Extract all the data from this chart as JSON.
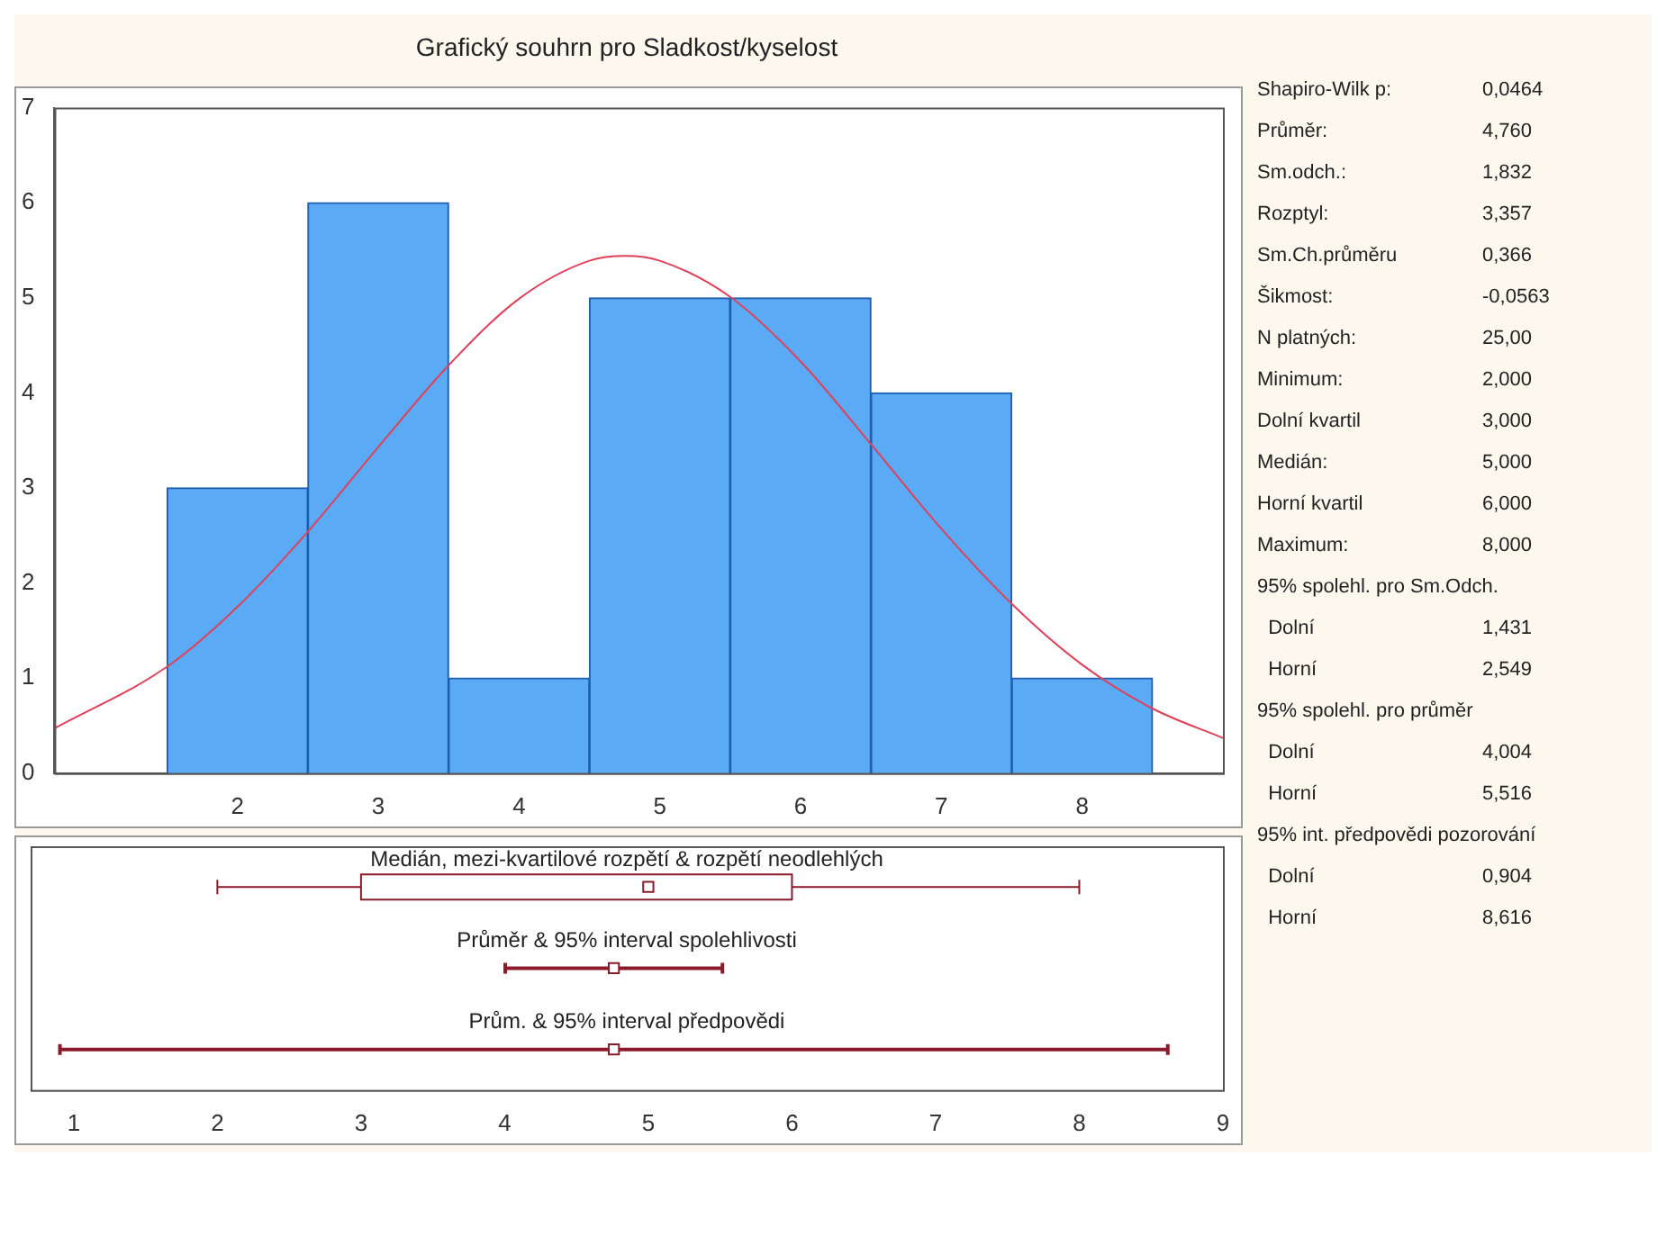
{
  "chart_data": [
    {
      "type": "histogram",
      "title": "Grafický souhrn pro Sladkost/kyselost",
      "bins": [
        1.5,
        2.5,
        3.5,
        4.5,
        5.5,
        6.5,
        7.5,
        8.5
      ],
      "values": [
        3,
        6,
        1,
        5,
        5,
        4,
        1
      ],
      "color": "#5aaaf5",
      "xlim": [
        0.7,
        9
      ],
      "xticks": [
        2,
        3,
        4,
        5,
        6,
        7,
        8
      ],
      "ylim": [
        0,
        7
      ],
      "yticks": [
        0,
        1,
        2,
        3,
        4,
        5,
        6,
        7
      ],
      "legend": false,
      "series": [
        {
          "type": "line",
          "color": "#e0405a",
          "x": [
            0.7,
            1.5,
            2,
            2.5,
            3,
            3.5,
            4,
            4.5,
            4.76,
            5,
            5.5,
            6,
            6.5,
            7,
            7.5,
            8,
            8.5,
            9
          ],
          "values": [
            0.47,
            1.12,
            1.75,
            2.54,
            3.43,
            4.29,
            4.99,
            5.39,
            5.44,
            5.39,
            5.01,
            4.33,
            3.46,
            2.57,
            1.78,
            1.14,
            0.68,
            0.37
          ]
        }
      ]
    },
    {
      "type": "box",
      "orientation": "horizontal",
      "categories": [
        "Medián, mezi-kvartilové rozpětí & rozpětí neodlehlých",
        "Průměr & 95% interval spolehlivosti",
        "Prům. & 95% interval předpovědi"
      ],
      "xlim": [
        0.7,
        9
      ],
      "xticks": [
        1,
        2,
        3,
        4,
        5,
        6,
        7,
        8,
        9
      ],
      "tick_labels": "x",
      "legend": false,
      "series": [
        {
          "type": "box",
          "color": "#8b1a2b",
          "boxes": [
            {
              "low": 2,
              "q1": 3,
              "median": 5,
              "q3": 6,
              "high": 8
            },
            null,
            null
          ]
        },
        {
          "type": "scatter",
          "color": "#8b1a2b",
          "marker": "square",
          "values": [
            null,
            4.76,
            4.76
          ],
          "errors": [
            null,
            [
              4.004,
              5.516
            ],
            [
              0.904,
              8.616
            ]
          ]
        }
      ]
    },
    {
      "type": "other",
      "annotations": [
        "Shapiro-Wilk p:\t0,0464",
        "Průměr:\t4,760",
        "Sm.odch.:\t1,832",
        "Rozptyl:\t3,357",
        "Sm.Ch.průměru\t0,366",
        "Šikmost:\t-0,0563",
        "N platných:\t25,00",
        "Minimum:\t2,000",
        "Dolní kvartil\t3,000",
        "Medián:\t5,000",
        "Horní kvartil\t6,000",
        "Maximum:\t8,000",
        "95% spolehl. pro Sm.Odch.",
        "  Dolní\t1,431",
        "  Horní\t2,549",
        "95% spolehl. pro průměr",
        "  Dolní\t4,004",
        "  Horní\t5,516",
        "95% int. předpovědi pozorování",
        "  Dolní\t0,904",
        "  Horní\t8,616"
      ]
    }
  ]
}
